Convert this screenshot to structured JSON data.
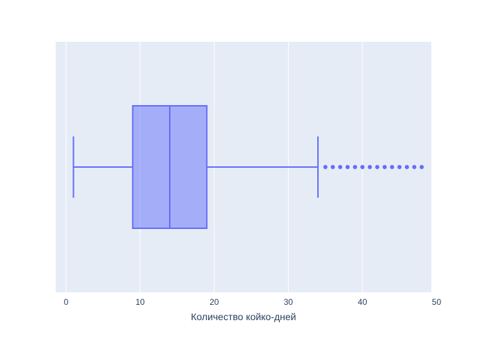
{
  "chart_data": {
    "type": "box",
    "orientation": "horizontal",
    "title": "",
    "xlabel": "Количество койко-дней",
    "ylabel": "",
    "xlim": [
      -1.4,
      49.3
    ],
    "x_ticks": [
      0,
      10,
      20,
      30,
      40,
      50
    ],
    "x_tick_labels": [
      "0",
      "10",
      "20",
      "30",
      "40",
      "50"
    ],
    "grid": true,
    "legend": "none",
    "box": {
      "min": 1,
      "q1": 9,
      "median": 14,
      "q3": 19,
      "upper_fence": 34,
      "outliers": [
        35,
        36,
        37,
        38,
        39,
        40,
        41,
        42,
        43,
        44,
        45,
        46,
        47,
        48
      ]
    },
    "colors": {
      "plot_background": "#e5ecf6",
      "gridline": "#ffffff",
      "box_line": "#636efa",
      "box_fill": "rgba(99,110,250,0.5)",
      "text": "#2a3f5f"
    }
  }
}
